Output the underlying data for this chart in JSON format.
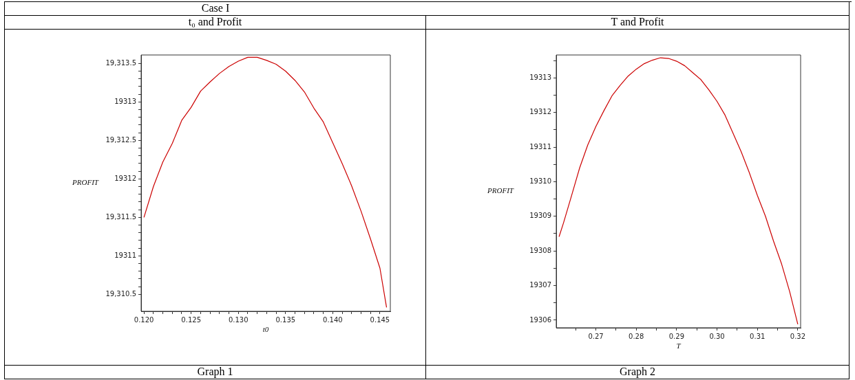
{
  "chart_data": [
    {
      "type": "line",
      "title": "Case I",
      "subtitle": "t₀ and Profit",
      "xlabel": "t0",
      "ylabel": "PROFIT",
      "annotations": [
        "Graph 1"
      ],
      "grid": false,
      "legend": false,
      "marker": "none",
      "line_style": "solid",
      "x": [
        0.12,
        0.121,
        0.122,
        0.123,
        0.124,
        0.125,
        0.126,
        0.127,
        0.128,
        0.129,
        0.13,
        0.131,
        0.132,
        0.133,
        0.134,
        0.135,
        0.136,
        0.137,
        0.138,
        0.139,
        0.14,
        0.141,
        0.142,
        0.143,
        0.144,
        0.145,
        0.1457
      ],
      "series": [
        {
          "color": "#cc0000",
          "values": [
            19311.5,
            19311.9,
            19312.22,
            19312.46,
            19312.76,
            19312.93,
            19313.14,
            19313.26,
            19313.37,
            19313.46,
            19313.53,
            19313.58,
            19313.58,
            19313.54,
            19313.49,
            19313.4,
            19313.28,
            19313.13,
            19312.92,
            19312.74,
            19312.47,
            19312.2,
            19311.91,
            19311.58,
            19311.22,
            19310.84,
            19310.33
          ]
        }
      ],
      "xlim": [
        0.1197,
        0.1461
      ],
      "ylim": [
        19310.28,
        19313.61
      ],
      "xticks": [
        {
          "value": 0.12,
          "label": "0.120"
        },
        {
          "value": 0.121,
          "label": null
        },
        {
          "value": 0.122,
          "label": null
        },
        {
          "value": 0.123,
          "label": null
        },
        {
          "value": 0.124,
          "label": null
        },
        {
          "value": 0.125,
          "label": "0.125"
        },
        {
          "value": 0.126,
          "label": null
        },
        {
          "value": 0.127,
          "label": null
        },
        {
          "value": 0.128,
          "label": null
        },
        {
          "value": 0.129,
          "label": null
        },
        {
          "value": 0.13,
          "label": "0.130"
        },
        {
          "value": 0.131,
          "label": null
        },
        {
          "value": 0.132,
          "label": null
        },
        {
          "value": 0.133,
          "label": null
        },
        {
          "value": 0.134,
          "label": null
        },
        {
          "value": 0.135,
          "label": "0.135"
        },
        {
          "value": 0.136,
          "label": null
        },
        {
          "value": 0.137,
          "label": null
        },
        {
          "value": 0.138,
          "label": null
        },
        {
          "value": 0.139,
          "label": null
        },
        {
          "value": 0.14,
          "label": "0.140"
        },
        {
          "value": 0.141,
          "label": null
        },
        {
          "value": 0.142,
          "label": null
        },
        {
          "value": 0.143,
          "label": null
        },
        {
          "value": 0.144,
          "label": null
        },
        {
          "value": 0.145,
          "label": "0.145"
        }
      ],
      "yticks": [
        {
          "value": 19310.5,
          "label": "19,310.5"
        },
        {
          "value": 19310.6,
          "label": null
        },
        {
          "value": 19310.7,
          "label": null
        },
        {
          "value": 19310.8,
          "label": null
        },
        {
          "value": 19310.9,
          "label": null
        },
        {
          "value": 19311,
          "label": "19311"
        },
        {
          "value": 19311.1,
          "label": null
        },
        {
          "value": 19311.2,
          "label": null
        },
        {
          "value": 19311.3,
          "label": null
        },
        {
          "value": 19311.4,
          "label": null
        },
        {
          "value": 19311.5,
          "label": "19,311.5"
        },
        {
          "value": 19311.6,
          "label": null
        },
        {
          "value": 19311.7,
          "label": null
        },
        {
          "value": 19311.8,
          "label": null
        },
        {
          "value": 19311.9,
          "label": null
        },
        {
          "value": 19312,
          "label": "19312"
        },
        {
          "value": 19312.1,
          "label": null
        },
        {
          "value": 19312.2,
          "label": null
        },
        {
          "value": 19312.3,
          "label": null
        },
        {
          "value": 19312.4,
          "label": null
        },
        {
          "value": 19312.5,
          "label": "19,312.5"
        },
        {
          "value": 19312.6,
          "label": null
        },
        {
          "value": 19312.7,
          "label": null
        },
        {
          "value": 19312.8,
          "label": null
        },
        {
          "value": 19312.9,
          "label": null
        },
        {
          "value": 19313,
          "label": "19313"
        },
        {
          "value": 19313.1,
          "label": null
        },
        {
          "value": 19313.2,
          "label": null
        },
        {
          "value": 19313.3,
          "label": null
        },
        {
          "value": 19313.4,
          "label": null
        },
        {
          "value": 19313.5,
          "label": "19,313.5"
        }
      ]
    },
    {
      "type": "line",
      "subtitle": "T and Profit",
      "xlabel": "T",
      "ylabel": "PROFIT",
      "annotations": [
        "Graph 2"
      ],
      "grid": false,
      "legend": false,
      "marker": "none",
      "line_style": "solid",
      "x": [
        0.2609,
        0.262,
        0.264,
        0.266,
        0.268,
        0.27,
        0.272,
        0.274,
        0.276,
        0.278,
        0.28,
        0.282,
        0.284,
        0.286,
        0.288,
        0.29,
        0.292,
        0.294,
        0.296,
        0.298,
        0.3,
        0.302,
        0.304,
        0.306,
        0.308,
        0.31,
        0.312,
        0.314,
        0.316,
        0.318,
        0.32
      ],
      "series": [
        {
          "color": "#cc0000",
          "values": [
            19308.41,
            19308.81,
            19309.6,
            19310.4,
            19311.06,
            19311.59,
            19312.05,
            19312.48,
            19312.78,
            19313.05,
            19313.25,
            19313.41,
            19313.51,
            19313.58,
            19313.56,
            19313.48,
            19313.35,
            19313.15,
            19312.95,
            19312.65,
            19312.32,
            19311.92,
            19311.39,
            19310.86,
            19310.26,
            19309.6,
            19309.0,
            19308.28,
            19307.62,
            19306.82,
            19305.88
          ]
        }
      ],
      "xlim": [
        0.2602,
        0.3207
      ],
      "ylim": [
        19305.78,
        19313.66
      ],
      "xticks": [
        {
          "value": 0.265,
          "label": null
        },
        {
          "value": 0.27,
          "label": "0.27"
        },
        {
          "value": 0.275,
          "label": null
        },
        {
          "value": 0.28,
          "label": "0.28"
        },
        {
          "value": 0.285,
          "label": null
        },
        {
          "value": 0.29,
          "label": "0.29"
        },
        {
          "value": 0.295,
          "label": null
        },
        {
          "value": 0.3,
          "label": "0.30"
        },
        {
          "value": 0.305,
          "label": null
        },
        {
          "value": 0.31,
          "label": "0.31"
        },
        {
          "value": 0.315,
          "label": null
        },
        {
          "value": 0.32,
          "label": "0.32"
        }
      ],
      "yticks": [
        19306,
        {
          "value": 19306.5,
          "label": null
        },
        19307,
        {
          "value": 19307.5,
          "label": null
        },
        19308,
        {
          "value": 19308.5,
          "label": null
        },
        19309,
        {
          "value": 19309.5,
          "label": null
        },
        19310,
        {
          "value": 19310.5,
          "label": null
        },
        19311,
        {
          "value": 19311.5,
          "label": null
        },
        19312,
        {
          "value": 19312.5,
          "label": null
        },
        19313,
        {
          "value": 19313.5,
          "label": null
        }
      ]
    }
  ]
}
